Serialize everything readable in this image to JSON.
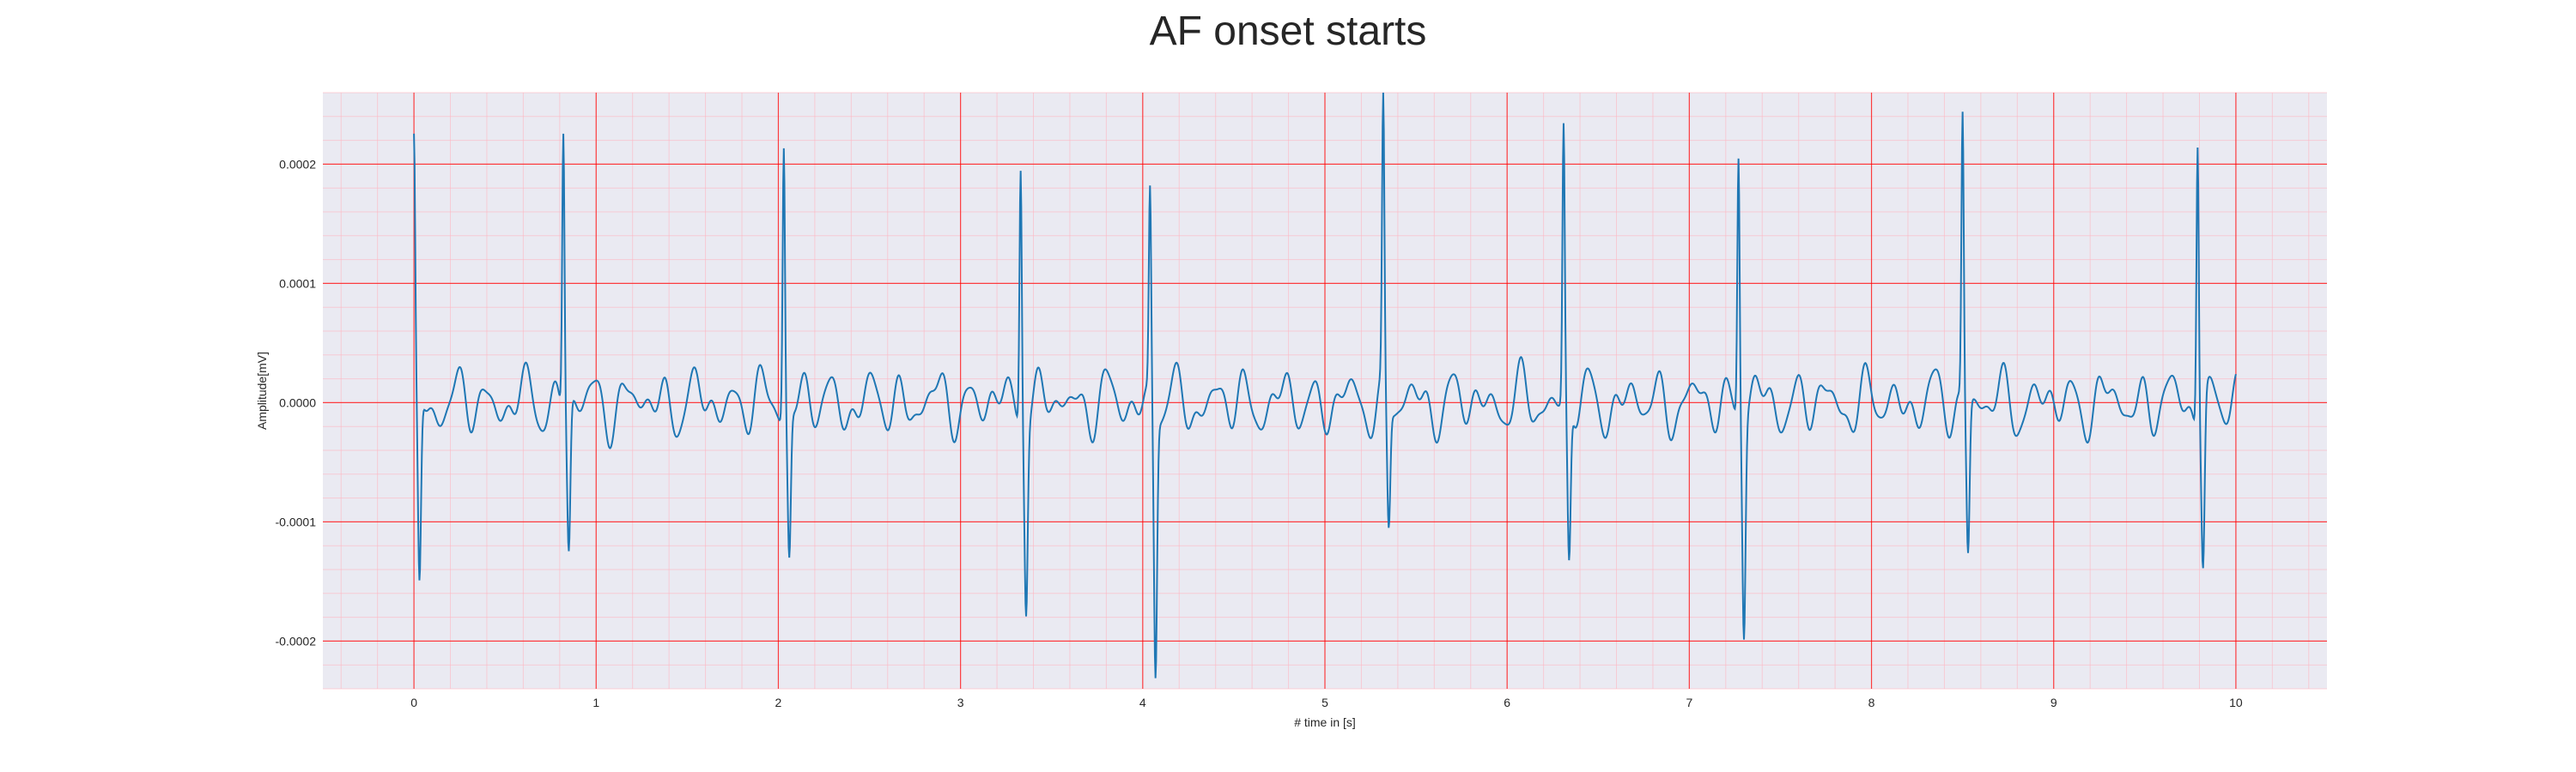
{
  "chart_data": {
    "type": "line",
    "title": "AF onset starts",
    "xlabel": "# time in [s]",
    "ylabel": "Amplitude[mV]",
    "xlim": [
      -0.5,
      10.5
    ],
    "ylim": [
      -0.00024,
      0.00026
    ],
    "x_ticks": [
      0,
      1,
      2,
      3,
      4,
      5,
      6,
      7,
      8,
      9,
      10
    ],
    "x_tick_labels": [
      "0",
      "1",
      "2",
      "3",
      "4",
      "5",
      "6",
      "7",
      "8",
      "9",
      "10"
    ],
    "y_ticks": [
      -0.0002,
      -0.0001,
      0.0,
      0.0001,
      0.0002
    ],
    "y_tick_labels": [
      "-0.0002",
      "-0.0001",
      "0.0000",
      "0.0001",
      "0.0002"
    ],
    "grid": true,
    "series": [
      {
        "name": "",
        "color": "#1f77b4",
        "sampling_interval_s": 0.01,
        "beats": [
          {
            "t": 0.0,
            "r": 0.000202,
            "s": -0.000165
          },
          {
            "t": 0.82,
            "r": 0.000235,
            "s": -0.000122
          },
          {
            "t": 2.03,
            "r": 0.000228,
            "s": -0.000122
          },
          {
            "t": 3.33,
            "r": 0.000218,
            "s": -0.000152
          },
          {
            "t": 4.04,
            "r": 0.00017,
            "s": -0.00022
          },
          {
            "t": 5.32,
            "r": 0.000237,
            "s": -0.000105
          },
          {
            "t": 6.31,
            "r": 0.00023,
            "s": -0.000134
          },
          {
            "t": 7.27,
            "r": 0.000221,
            "s": -0.000178
          },
          {
            "t": 8.5,
            "r": 0.00024,
            "s": -0.000125
          },
          {
            "t": 9.79,
            "r": 0.000239,
            "s": -0.000134
          }
        ],
        "baseline_noise_amplitude": 3.5e-05
      }
    ]
  },
  "colors": {
    "plot_background": "#eaeaf2",
    "major_grid": "#ff0000",
    "minor_grid": "#ffb6c1",
    "line": "#1f77b4",
    "text": "#262626"
  }
}
